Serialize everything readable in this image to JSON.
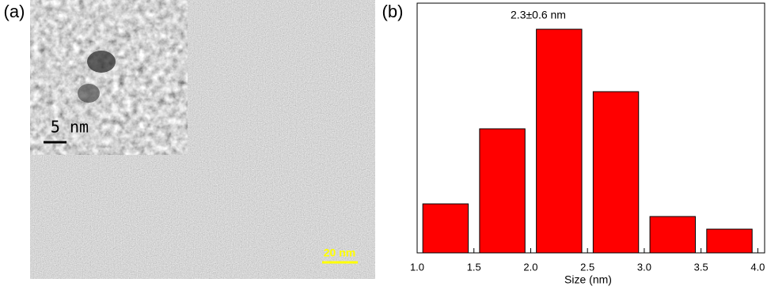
{
  "panel_a": {
    "label": "(a)",
    "inset_scale_bar": "5 nm",
    "scale_bar": "20 nm"
  },
  "chart_data": {
    "type": "bar",
    "label": "(b)",
    "annotation": "2.3±0.6 nm",
    "x_label": "Size (nm)",
    "x": [
      1.25,
      1.75,
      2.25,
      2.75,
      3.25,
      3.75
    ],
    "values": [
      6.2,
      15.7,
      28.3,
      20.4,
      4.6,
      3.0
    ],
    "color": "#ff0000",
    "xlim": [
      1.0,
      4.06
    ],
    "ylim": [
      0,
      31.6
    ],
    "xticks": [
      {
        "value": 1.0,
        "label": "1.0"
      },
      {
        "value": 1.5,
        "label": "1.5"
      },
      {
        "value": 2.0,
        "label": "2.0"
      },
      {
        "value": 2.5,
        "label": "2.5"
      },
      {
        "value": 3.0,
        "label": "3.0"
      },
      {
        "value": 3.5,
        "label": "3.5"
      },
      {
        "value": 4.0,
        "label": "4.0"
      }
    ]
  }
}
